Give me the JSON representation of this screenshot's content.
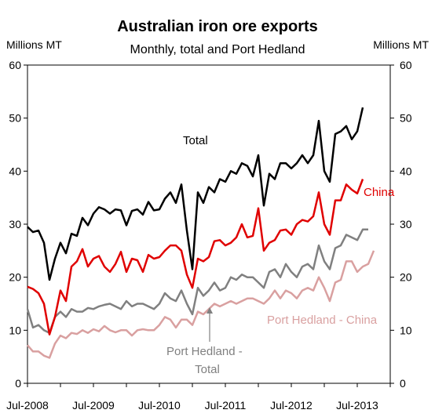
{
  "chart_data": {
    "type": "line",
    "title": "Australian iron ore exports",
    "subtitle": "Monthly, total and Port Hedland",
    "ylabel_left": "Millions MT",
    "ylabel_right": "Millions MT",
    "ylim": [
      0,
      60
    ],
    "yticks": [
      "0",
      "10",
      "20",
      "30",
      "40",
      "50",
      "60"
    ],
    "xticks": [
      "Jul-2008",
      "Jul-2009",
      "Jul-2010",
      "Jul-2011",
      "Jul-2012",
      "Jul-2013"
    ],
    "x_start": "Jul-2008",
    "legend": "inline labels",
    "series": [
      {
        "name": "Total",
        "color": "#000000",
        "values": [
          29.5,
          28.5,
          28.8,
          26.5,
          19.5,
          23.5,
          26.5,
          24.5,
          28.2,
          27.8,
          31.2,
          29.8,
          32.0,
          33.2,
          32.8,
          32.0,
          32.8,
          32.6,
          29.8,
          32.5,
          32.8,
          31.8,
          34.2,
          32.6,
          32.8,
          34.8,
          36.0,
          34.0,
          37.5,
          28.8,
          21.5,
          36.0,
          34.0,
          37.0,
          36.0,
          38.5,
          38.0,
          40.0,
          39.5,
          41.5,
          41.0,
          39.0,
          43.0,
          33.5,
          39.5,
          38.5,
          41.5,
          41.5,
          40.5,
          41.5,
          43.0,
          41.5,
          43.0,
          49.5,
          40.0,
          38.0,
          47.0,
          47.5,
          48.5,
          46.0,
          47.5,
          52.0
        ]
      },
      {
        "name": "China",
        "color": "#e00000",
        "values": [
          18.2,
          17.8,
          17.0,
          15.0,
          9.2,
          12.5,
          17.5,
          15.5,
          22.0,
          23.0,
          25.3,
          22.0,
          23.5,
          24.0,
          22.0,
          21.0,
          22.5,
          24.8,
          21.0,
          23.5,
          23.2,
          21.0,
          24.2,
          23.5,
          23.8,
          25.0,
          26.0,
          26.0,
          25.0,
          20.5,
          18.0,
          23.5,
          23.0,
          23.8,
          26.8,
          27.0,
          26.0,
          26.5,
          27.5,
          30.0,
          27.5,
          27.8,
          33.0,
          25.0,
          26.5,
          27.0,
          28.8,
          29.0,
          28.0,
          30.0,
          30.8,
          30.5,
          31.5,
          36.0,
          30.0,
          28.0,
          34.5,
          34.5,
          37.5,
          36.5,
          35.8,
          38.5
        ]
      },
      {
        "name": "Port Hedland - Total",
        "color": "#808080",
        "values": [
          14.0,
          10.5,
          11.0,
          10.0,
          9.5,
          12.5,
          13.5,
          12.5,
          14.0,
          13.5,
          13.5,
          14.2,
          14.0,
          14.5,
          14.8,
          15.0,
          14.5,
          14.0,
          15.5,
          14.5,
          15.0,
          15.0,
          14.5,
          14.0,
          15.0,
          17.0,
          16.0,
          15.5,
          17.5,
          15.0,
          13.0,
          18.0,
          16.5,
          17.5,
          19.0,
          17.5,
          18.0,
          20.0,
          19.5,
          20.5,
          20.0,
          20.0,
          19.0,
          18.0,
          21.0,
          21.5,
          20.0,
          22.5,
          21.0,
          20.0,
          22.0,
          22.5,
          21.5,
          26.0,
          23.0,
          21.5,
          25.5,
          26.0,
          28.0,
          27.5,
          27.0,
          29.0,
          29.0
        ]
      },
      {
        "name": "Port Hedland - China",
        "color": "#d9a0a0",
        "values": [
          7.2,
          6.0,
          6.0,
          5.2,
          4.8,
          7.5,
          9.0,
          8.5,
          9.5,
          9.3,
          10.0,
          9.5,
          10.2,
          9.8,
          10.8,
          10.0,
          9.6,
          10.0,
          10.0,
          9.0,
          10.0,
          10.2,
          10.0,
          10.0,
          11.0,
          12.5,
          12.0,
          10.5,
          12.0,
          12.0,
          11.0,
          13.5,
          13.0,
          14.0,
          15.0,
          14.5,
          15.0,
          15.5,
          15.0,
          15.5,
          16.0,
          16.0,
          15.5,
          15.0,
          16.0,
          17.5,
          16.0,
          17.5,
          17.0,
          16.0,
          17.5,
          18.0,
          17.5,
          20.0,
          18.0,
          15.5,
          19.0,
          19.5,
          23.0,
          23.0,
          21.0,
          22.0,
          22.5,
          25.0
        ]
      }
    ],
    "annotations": [
      "Total",
      "China",
      "Port Hedland - China",
      "Port Hedland -",
      "Total"
    ]
  }
}
